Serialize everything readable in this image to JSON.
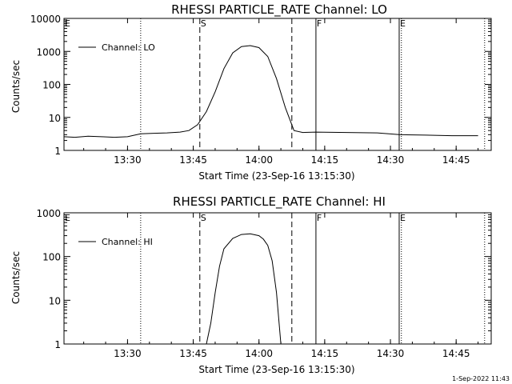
{
  "footer": {
    "timestamp": "1-Sep-2022 11:43"
  },
  "chart_data": [
    {
      "type": "line",
      "title": "RHESSI PARTICLE_RATE Channel: LO",
      "xlabel": "Start Time (23-Sep-16 13:15:30)",
      "ylabel": "Counts/sec",
      "yscale": "log",
      "ylim": [
        1,
        10000
      ],
      "xlim_minutes": [
        13.25,
        14.88
      ],
      "xticks": [
        "13:30",
        "13:45",
        "14:00",
        "14:15",
        "14:30",
        "14:45"
      ],
      "yticks": [
        "1",
        "10",
        "100",
        "1000",
        "10000"
      ],
      "legend": {
        "label": "Channel: LO",
        "position": "top-left"
      },
      "markers": [
        {
          "label": "E",
          "time": "13:15:30",
          "style": "dotted"
        },
        {
          "label": "",
          "time": "13:33:00",
          "style": "dotted"
        },
        {
          "label": "S",
          "time": "13:46:30",
          "style": "dashed"
        },
        {
          "label": "",
          "time": "14:07:30",
          "style": "dashed"
        },
        {
          "label": "F",
          "time": "14:13:00",
          "style": "solid"
        },
        {
          "label": "E",
          "time": "14:32:00",
          "style": "solid"
        },
        {
          "label": "",
          "time": "14:32:30",
          "style": "dotted"
        },
        {
          "label": "",
          "time": "14:51:30",
          "style": "dotted"
        }
      ],
      "series": [
        {
          "name": "Channel: LO",
          "x": [
            "13:15:30",
            "13:18",
            "13:21",
            "13:24",
            "13:27",
            "13:30",
            "13:33",
            "13:36",
            "13:39",
            "13:42",
            "13:44",
            "13:46",
            "13:48",
            "13:50",
            "13:52",
            "13:54",
            "13:56",
            "13:58",
            "14:00",
            "14:02",
            "14:04",
            "14:06",
            "14:08",
            "14:10",
            "14:13",
            "14:20",
            "14:27",
            "14:32",
            "14:38",
            "14:44",
            "14:50"
          ],
          "y": [
            2.6,
            2.5,
            2.7,
            2.6,
            2.5,
            2.6,
            3.2,
            3.3,
            3.4,
            3.6,
            4.0,
            6,
            15,
            60,
            300,
            900,
            1400,
            1500,
            1300,
            700,
            150,
            20,
            4,
            3.5,
            3.6,
            3.5,
            3.4,
            3.0,
            2.9,
            2.8,
            2.8
          ]
        }
      ]
    },
    {
      "type": "line",
      "title": "RHESSI PARTICLE_RATE Channel: HI",
      "xlabel": "Start Time (23-Sep-16 13:15:30)",
      "ylabel": "Counts/sec",
      "yscale": "log",
      "ylim": [
        1,
        1000
      ],
      "xlim_minutes": [
        13.25,
        14.88
      ],
      "xticks": [
        "13:30",
        "13:45",
        "14:00",
        "14:15",
        "14:30",
        "14:45"
      ],
      "yticks": [
        "1",
        "10",
        "100",
        "1000"
      ],
      "legend": {
        "label": "Channel: HI",
        "position": "top-left"
      },
      "markers": [
        {
          "label": "E",
          "time": "13:15:30",
          "style": "dotted"
        },
        {
          "label": "",
          "time": "13:33:00",
          "style": "dotted"
        },
        {
          "label": "S",
          "time": "13:46:30",
          "style": "dashed"
        },
        {
          "label": "",
          "time": "14:07:30",
          "style": "dashed"
        },
        {
          "label": "F",
          "time": "14:13:00",
          "style": "solid"
        },
        {
          "label": "E",
          "time": "14:32:00",
          "style": "solid"
        },
        {
          "label": "",
          "time": "14:32:30",
          "style": "dotted"
        },
        {
          "label": "",
          "time": "14:51:30",
          "style": "dotted"
        }
      ],
      "series": [
        {
          "name": "Channel: HI",
          "x": [
            "13:48",
            "13:49",
            "13:50",
            "13:51",
            "13:52",
            "13:54",
            "13:56",
            "13:58",
            "14:00",
            "14:01",
            "14:02",
            "14:03",
            "14:04",
            "14:05"
          ],
          "y": [
            1,
            3,
            15,
            60,
            150,
            260,
            320,
            330,
            300,
            250,
            180,
            80,
            15,
            1
          ]
        }
      ]
    }
  ]
}
